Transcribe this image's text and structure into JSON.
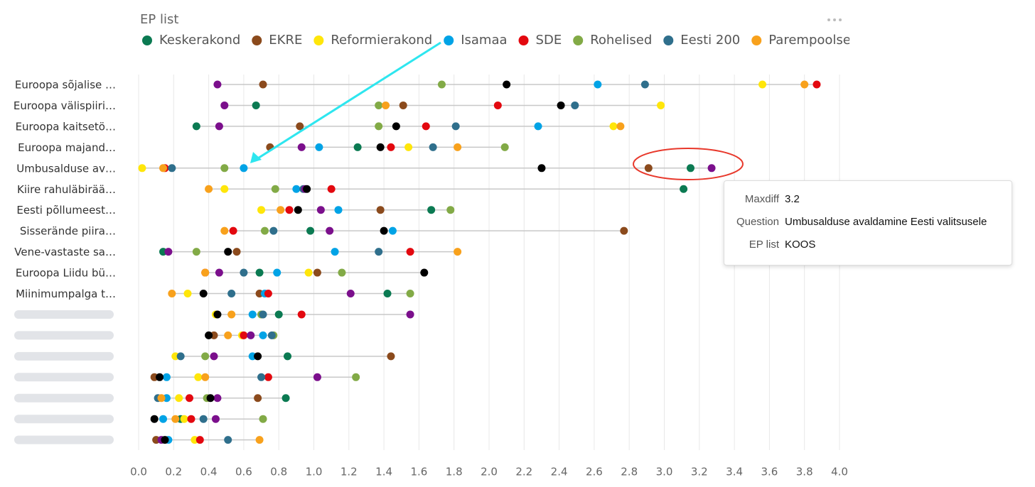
{
  "chart_data": {
    "type": "dot",
    "legend_title": "EP list",
    "categories": [
      "Euroopa sõjalise …",
      "Euroopa välispiiri…",
      "Euroopa kaitsetö…",
      "Euroopa majand…",
      "Umbusalduse av…",
      "Kiire rahuläbirää…",
      "Eesti põllumeest…",
      "Sisserände piira…",
      "Vene-vastaste sa…",
      "Euroopa Liidu bü…",
      "Miinimumpalga t…",
      null,
      null,
      null,
      null,
      null,
      null,
      null
    ],
    "series": [
      {
        "name": "Keskerakond",
        "color": "#0b7a52",
        "values": [
          null,
          0.67,
          0.33,
          1.25,
          3.15,
          3.11,
          1.67,
          0.98,
          0.14,
          0.69,
          1.42,
          0.8,
          null,
          0.85,
          null,
          0.84,
          0.24,
          null
        ]
      },
      {
        "name": "EKRE",
        "color": "#8b4a1c",
        "values": [
          0.71,
          1.51,
          0.92,
          0.75,
          2.91,
          null,
          1.38,
          2.77,
          0.56,
          1.02,
          0.69,
          null,
          0.43,
          1.44,
          0.09,
          0.68,
          null,
          0.1
        ]
      },
      {
        "name": "Reformierakond",
        "color": "#ffe60a",
        "values": [
          3.56,
          2.98,
          2.71,
          1.54,
          0.02,
          0.49,
          0.7,
          null,
          null,
          0.97,
          0.28,
          0.44,
          0.59,
          0.21,
          0.34,
          0.23,
          0.26,
          0.32
        ]
      },
      {
        "name": "Isamaa",
        "color": "#00a3e6",
        "values": [
          2.62,
          null,
          2.28,
          1.03,
          0.6,
          0.9,
          1.14,
          1.45,
          1.12,
          0.79,
          0.72,
          0.65,
          0.71,
          0.65,
          0.16,
          0.16,
          0.14,
          0.17
        ]
      },
      {
        "name": "SDE",
        "color": "#e3080f",
        "values": [
          3.87,
          2.05,
          1.64,
          1.44,
          0.15,
          1.1,
          0.86,
          0.54,
          1.55,
          0.38,
          0.74,
          0.93,
          0.6,
          null,
          0.74,
          0.29,
          0.3,
          0.35
        ]
      },
      {
        "name": "Rohelised",
        "color": "#82aa46",
        "values": [
          1.73,
          1.37,
          1.37,
          2.09,
          0.49,
          0.78,
          1.78,
          0.72,
          0.33,
          1.16,
          1.55,
          0.7,
          0.77,
          0.38,
          1.24,
          0.39,
          0.71,
          null
        ]
      },
      {
        "name": "Eesti 200",
        "color": "#2f6f8c",
        "values": [
          2.89,
          2.49,
          1.81,
          1.68,
          0.19,
          0.94,
          null,
          0.77,
          1.37,
          0.6,
          0.53,
          0.71,
          0.76,
          0.24,
          0.7,
          0.11,
          0.37,
          0.51
        ]
      },
      {
        "name": "Parempoolsed",
        "color": "#f8a11c",
        "values": [
          3.8,
          1.41,
          2.75,
          1.82,
          0.14,
          0.4,
          0.81,
          0.49,
          1.82,
          0.38,
          0.19,
          0.53,
          0.51,
          null,
          0.38,
          0.13,
          0.21,
          0.69
        ]
      },
      {
        "name": null,
        "color": "#7b0f8c",
        "values": [
          0.45,
          0.49,
          0.46,
          0.93,
          3.27,
          0.95,
          1.04,
          1.09,
          0.17,
          0.46,
          1.21,
          1.55,
          0.64,
          0.43,
          1.02,
          0.45,
          0.44,
          0.13
        ]
      },
      {
        "name": null,
        "color": "#000000",
        "values": [
          2.1,
          2.41,
          1.47,
          1.38,
          2.3,
          0.96,
          0.91,
          1.4,
          0.51,
          1.63,
          0.37,
          0.45,
          0.4,
          0.68,
          0.12,
          0.41,
          0.09,
          0.15
        ]
      }
    ],
    "xlim": [
      0,
      4
    ],
    "xticks": [
      {
        "value": 0,
        "label": "0.0"
      },
      0.2,
      0.4,
      0.6,
      0.8,
      {
        "value": 1,
        "label": "1.0"
      },
      1.2,
      1.4,
      1.6,
      1.8,
      {
        "value": 2,
        "label": "2.0"
      },
      2.2,
      2.4,
      2.6,
      2.8,
      {
        "value": 3,
        "label": "3.0"
      },
      3.2,
      3.4,
      3.6,
      3.8,
      {
        "value": 4,
        "label": "4.0"
      }
    ],
    "grid": true,
    "tooltip": {
      "rows": [
        {
          "label": "Maxdiff",
          "value": "3.2"
        },
        {
          "label": "Question",
          "value": "Umbusalduse avaldamine Eesti valitsusele"
        },
        {
          "label": "EP list",
          "value": "KOOS"
        }
      ]
    }
  }
}
